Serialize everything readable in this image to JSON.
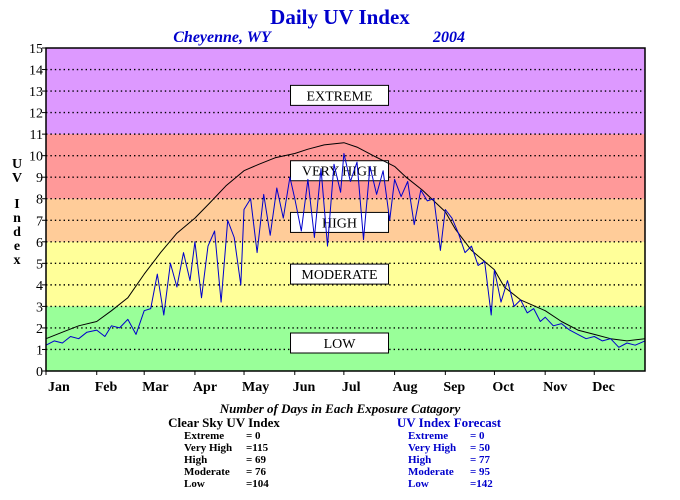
{
  "chart_data": {
    "type": "line",
    "title": "Daily UV Index",
    "location": "Cheyenne, WY",
    "year": "2004",
    "ylabel": "UV Index",
    "ylim": [
      0,
      15
    ],
    "yticks": [
      "0",
      "1",
      "2",
      "3",
      "4",
      "5",
      "6",
      "7",
      "8",
      "9",
      "10",
      "11",
      "12",
      "13",
      "14",
      "15"
    ],
    "xlim": [
      0,
      366
    ],
    "months": [
      {
        "label": "Jan",
        "day": 0
      },
      {
        "label": "Feb",
        "day": 31
      },
      {
        "label": "Mar",
        "day": 60
      },
      {
        "label": "Apr",
        "day": 91
      },
      {
        "label": "May",
        "day": 121
      },
      {
        "label": "Jun",
        "day": 152
      },
      {
        "label": "Jul",
        "day": 182
      },
      {
        "label": "Aug",
        "day": 213
      },
      {
        "label": "Sep",
        "day": 244
      },
      {
        "label": "Oct",
        "day": 274
      },
      {
        "label": "Nov",
        "day": 305
      },
      {
        "label": "Dec",
        "day": 335
      }
    ],
    "bands": [
      {
        "label": "LOW",
        "from": 0,
        "to": 3,
        "color": "#99ff99",
        "label_y": 1.3
      },
      {
        "label": "MODERATE",
        "from": 3,
        "to": 6,
        "color": "#ffff99",
        "label_y": 4.5
      },
      {
        "label": "HIGH",
        "from": 6,
        "to": 8,
        "color": "#ffcc99",
        "label_y": 6.9
      },
      {
        "label": "VERY HIGH",
        "from": 8,
        "to": 11,
        "color": "#ff9999",
        "label_y": 9.3
      },
      {
        "label": "EXTREME",
        "from": 11,
        "to": 15,
        "color": "#dd99ff",
        "label_y": 12.8
      }
    ],
    "grid": true,
    "series": [
      {
        "name": "Clear Sky UV Index",
        "color": "#000000",
        "x": [
          0,
          10,
          20,
          31,
          40,
          50,
          60,
          70,
          80,
          91,
          100,
          110,
          121,
          130,
          140,
          152,
          160,
          170,
          182,
          190,
          200,
          213,
          220,
          230,
          244,
          250,
          260,
          274,
          280,
          290,
          305,
          315,
          325,
          335,
          345,
          355,
          366
        ],
        "y": [
          1.5,
          1.8,
          2.1,
          2.3,
          2.8,
          3.4,
          4.5,
          5.5,
          6.4,
          7.1,
          7.8,
          8.6,
          9.3,
          9.6,
          9.9,
          10.1,
          10.3,
          10.5,
          10.6,
          10.4,
          10.0,
          9.5,
          9.0,
          8.4,
          7.4,
          6.6,
          5.6,
          4.7,
          3.9,
          3.3,
          2.8,
          2.3,
          1.9,
          1.7,
          1.5,
          1.4,
          1.5
        ]
      },
      {
        "name": "UV Index Forecast",
        "color": "#0000cc",
        "x": [
          0,
          5,
          10,
          15,
          20,
          25,
          31,
          36,
          40,
          45,
          50,
          55,
          60,
          64,
          68,
          72,
          76,
          80,
          84,
          88,
          91,
          95,
          99,
          103,
          107,
          111,
          115,
          119,
          121,
          125,
          129,
          133,
          137,
          141,
          145,
          149,
          152,
          156,
          160,
          164,
          168,
          172,
          176,
          180,
          182,
          186,
          190,
          194,
          198,
          202,
          206,
          210,
          213,
          217,
          221,
          225,
          229,
          233,
          237,
          241,
          244,
          248,
          252,
          256,
          260,
          264,
          268,
          272,
          274,
          278,
          282,
          286,
          290,
          294,
          298,
          302,
          305,
          310,
          315,
          320,
          325,
          330,
          335,
          340,
          345,
          350,
          355,
          360,
          366
        ],
        "y": [
          1.2,
          1.4,
          1.3,
          1.6,
          1.5,
          1.8,
          1.9,
          1.6,
          2.1,
          2.0,
          2.4,
          1.7,
          2.8,
          2.9,
          4.5,
          2.6,
          5.0,
          3.9,
          5.5,
          4.2,
          6.0,
          3.4,
          5.8,
          6.5,
          3.2,
          7.0,
          6.2,
          4.0,
          7.5,
          8.0,
          5.5,
          8.2,
          6.3,
          8.5,
          7.1,
          9.0,
          8.0,
          6.5,
          8.9,
          6.2,
          9.4,
          5.8,
          9.6,
          8.3,
          10.1,
          8.8,
          9.7,
          6.1,
          9.5,
          8.2,
          9.3,
          7.0,
          8.9,
          8.1,
          8.8,
          6.8,
          8.4,
          7.9,
          8.0,
          5.6,
          7.5,
          7.1,
          6.4,
          5.5,
          5.8,
          4.9,
          5.1,
          2.6,
          4.7,
          3.2,
          4.2,
          3.0,
          3.3,
          2.7,
          2.9,
          2.3,
          2.5,
          2.1,
          2.2,
          1.9,
          1.7,
          1.5,
          1.6,
          1.4,
          1.5,
          1.1,
          1.3,
          1.2,
          1.4
        ]
      }
    ],
    "summary": {
      "heading": "Number of Days in Each Exposure Catagory",
      "clear_sky": {
        "title": "Clear Sky UV Index",
        "rows": [
          {
            "label": "Extreme",
            "value": "=    0"
          },
          {
            "label": "Very High",
            "value": "=115"
          },
          {
            "label": "High",
            "value": "=  69"
          },
          {
            "label": "Moderate",
            "value": "=  76"
          },
          {
            "label": "Low",
            "value": "=104"
          }
        ]
      },
      "forecast": {
        "title": "UV Index Forecast",
        "rows": [
          {
            "label": "Extreme",
            "value": "=    0"
          },
          {
            "label": "Very High",
            "value": "=  50"
          },
          {
            "label": "High",
            "value": "=  77"
          },
          {
            "label": "Moderate",
            "value": "=  95"
          },
          {
            "label": "Low",
            "value": "=142"
          }
        ]
      }
    }
  }
}
